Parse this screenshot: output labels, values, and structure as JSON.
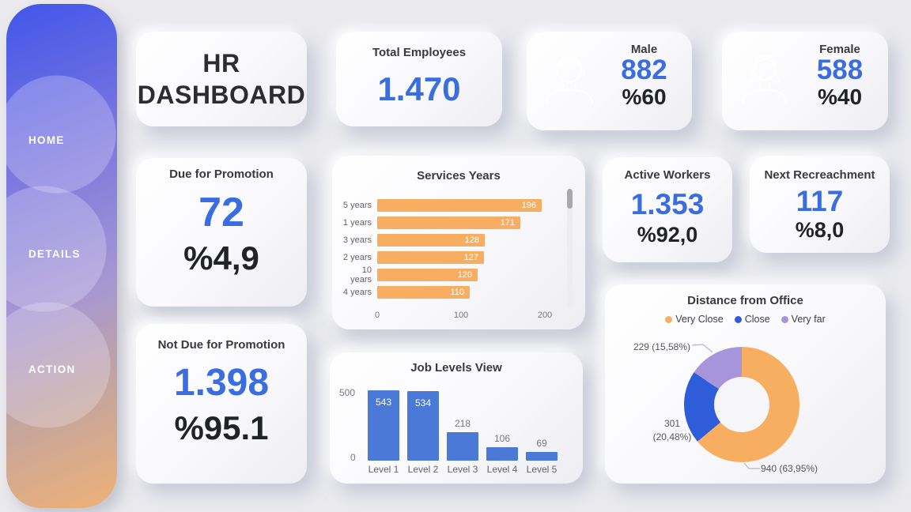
{
  "sidebar": {
    "items": [
      {
        "label": "HOME"
      },
      {
        "label": "DETAILS"
      },
      {
        "label": "ACTION"
      }
    ]
  },
  "header": {
    "title_line1": "HR",
    "title_line2": "DASHBOARD"
  },
  "kpis": {
    "total_employees": {
      "title": "Total Employees",
      "value": "1.470"
    },
    "male": {
      "title": "Male",
      "value": "882",
      "percent": "%60"
    },
    "female": {
      "title": "Female",
      "value": "588",
      "percent": "%40"
    },
    "due_for_promotion": {
      "title": "Due for Promotion",
      "value": "72",
      "percent": "%4,9"
    },
    "active_workers": {
      "title": "Active Workers",
      "value": "1.353",
      "percent": "%92,0"
    },
    "next_recreachment": {
      "title": "Next Recreachment",
      "value": "117",
      "percent": "%8,0"
    },
    "not_due_for_promotion": {
      "title": "Not Due for Promotion",
      "value": "1.398",
      "percent": "%95.1"
    }
  },
  "colors": {
    "accent_blue": "#3a6de0",
    "bar_orange": "#f7ae60",
    "bar_blue": "#4a79d8",
    "donut_blue": "#2f5cd8",
    "donut_purple": "#a795dc",
    "sidebar_top": "#4156ea",
    "sidebar_bottom": "#efb177"
  },
  "chart_data": [
    {
      "type": "bar",
      "orientation": "horizontal",
      "title": "Services Years",
      "categories": [
        "5 years",
        "1 years",
        "3 years",
        "2 years",
        "10 years",
        "4 years"
      ],
      "values": [
        196,
        171,
        128,
        127,
        120,
        110
      ],
      "xlim": [
        0,
        200
      ],
      "x_ticks": [
        0,
        100,
        200
      ],
      "bar_color": "#f7ae60",
      "grid": false,
      "scrollbar": true
    },
    {
      "type": "bar",
      "orientation": "vertical",
      "title": "Job Levels View",
      "categories": [
        "Level 1",
        "Level 2",
        "Level 3",
        "Level 4",
        "Level 5"
      ],
      "values": [
        543,
        534,
        218,
        106,
        69
      ],
      "ylim": [
        0,
        540
      ],
      "y_ticks": [
        0,
        500
      ],
      "bar_color": "#4a79d8",
      "grid": false
    },
    {
      "type": "pie",
      "subtype": "donut",
      "title": "Distance from Office",
      "legend_position": "top",
      "slices": [
        {
          "name": "Very Close",
          "value": 940,
          "percent": "63,95%",
          "label": "940 (63,95%)",
          "color": "#f7ae60"
        },
        {
          "name": "Close",
          "value": 301,
          "percent": "20,48%",
          "label_line1": "301",
          "label_line2": "(20,48%)",
          "color": "#2f5cd8"
        },
        {
          "name": "Very far",
          "value": 229,
          "percent": "15,58%",
          "label": "229 (15,58%)",
          "color": "#a795dc"
        }
      ]
    }
  ]
}
